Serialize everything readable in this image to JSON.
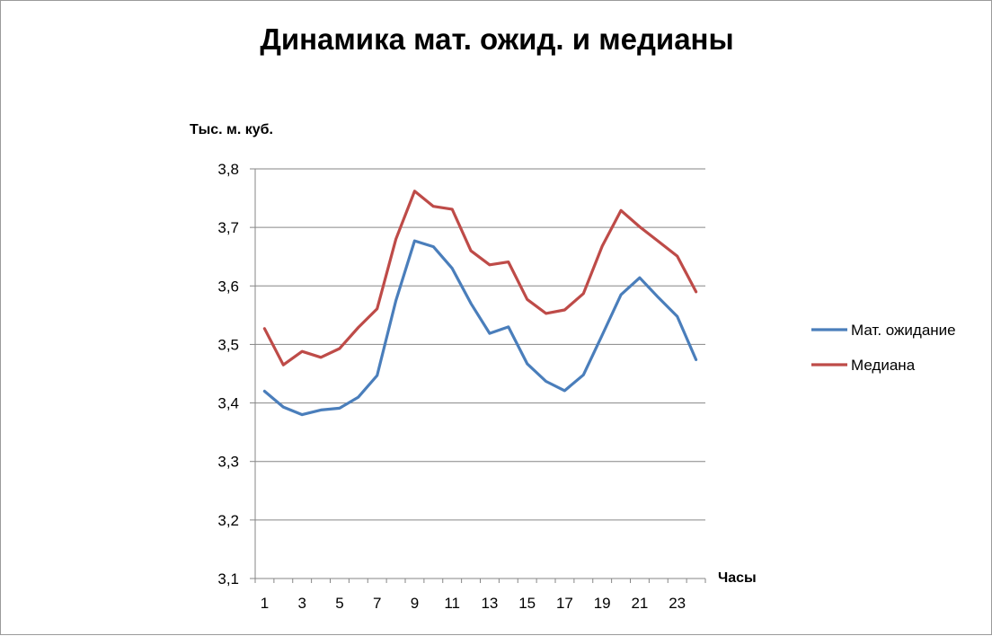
{
  "chart_data": {
    "type": "line",
    "title": "Динамика мат. ожид. и медианы",
    "ylabel": "Тыс. м. куб.",
    "xlabel": "Часы",
    "ylim": [
      3.1,
      3.8
    ],
    "y_ticks": [
      "3,1",
      "3,2",
      "3,3",
      "3,4",
      "3,5",
      "3,6",
      "3,7",
      "3,8"
    ],
    "x": [
      1,
      2,
      3,
      4,
      5,
      6,
      7,
      8,
      9,
      10,
      11,
      12,
      13,
      14,
      15,
      16,
      17,
      18,
      19,
      20,
      21,
      22,
      23,
      24
    ],
    "x_tick_labels": [
      "1",
      "3",
      "5",
      "7",
      "9",
      "11",
      "13",
      "15",
      "17",
      "19",
      "21",
      "23"
    ],
    "grid": true,
    "legend": "right",
    "series": [
      {
        "name": "Мат. ожидание",
        "color": "#4a7ebb",
        "values": [
          3.42,
          3.393,
          3.38,
          3.388,
          3.391,
          3.41,
          3.447,
          3.575,
          3.677,
          3.667,
          3.63,
          3.57,
          3.519,
          3.53,
          3.467,
          3.437,
          3.421,
          3.448,
          3.516,
          3.585,
          3.614,
          3.58,
          3.548,
          3.474
        ]
      },
      {
        "name": "Медиана",
        "color": "#be4b48",
        "values": [
          3.527,
          3.465,
          3.488,
          3.478,
          3.493,
          3.529,
          3.561,
          3.68,
          3.762,
          3.736,
          3.731,
          3.66,
          3.636,
          3.641,
          3.577,
          3.553,
          3.559,
          3.587,
          3.668,
          3.729,
          3.701,
          3.676,
          3.651,
          3.59
        ]
      }
    ]
  }
}
